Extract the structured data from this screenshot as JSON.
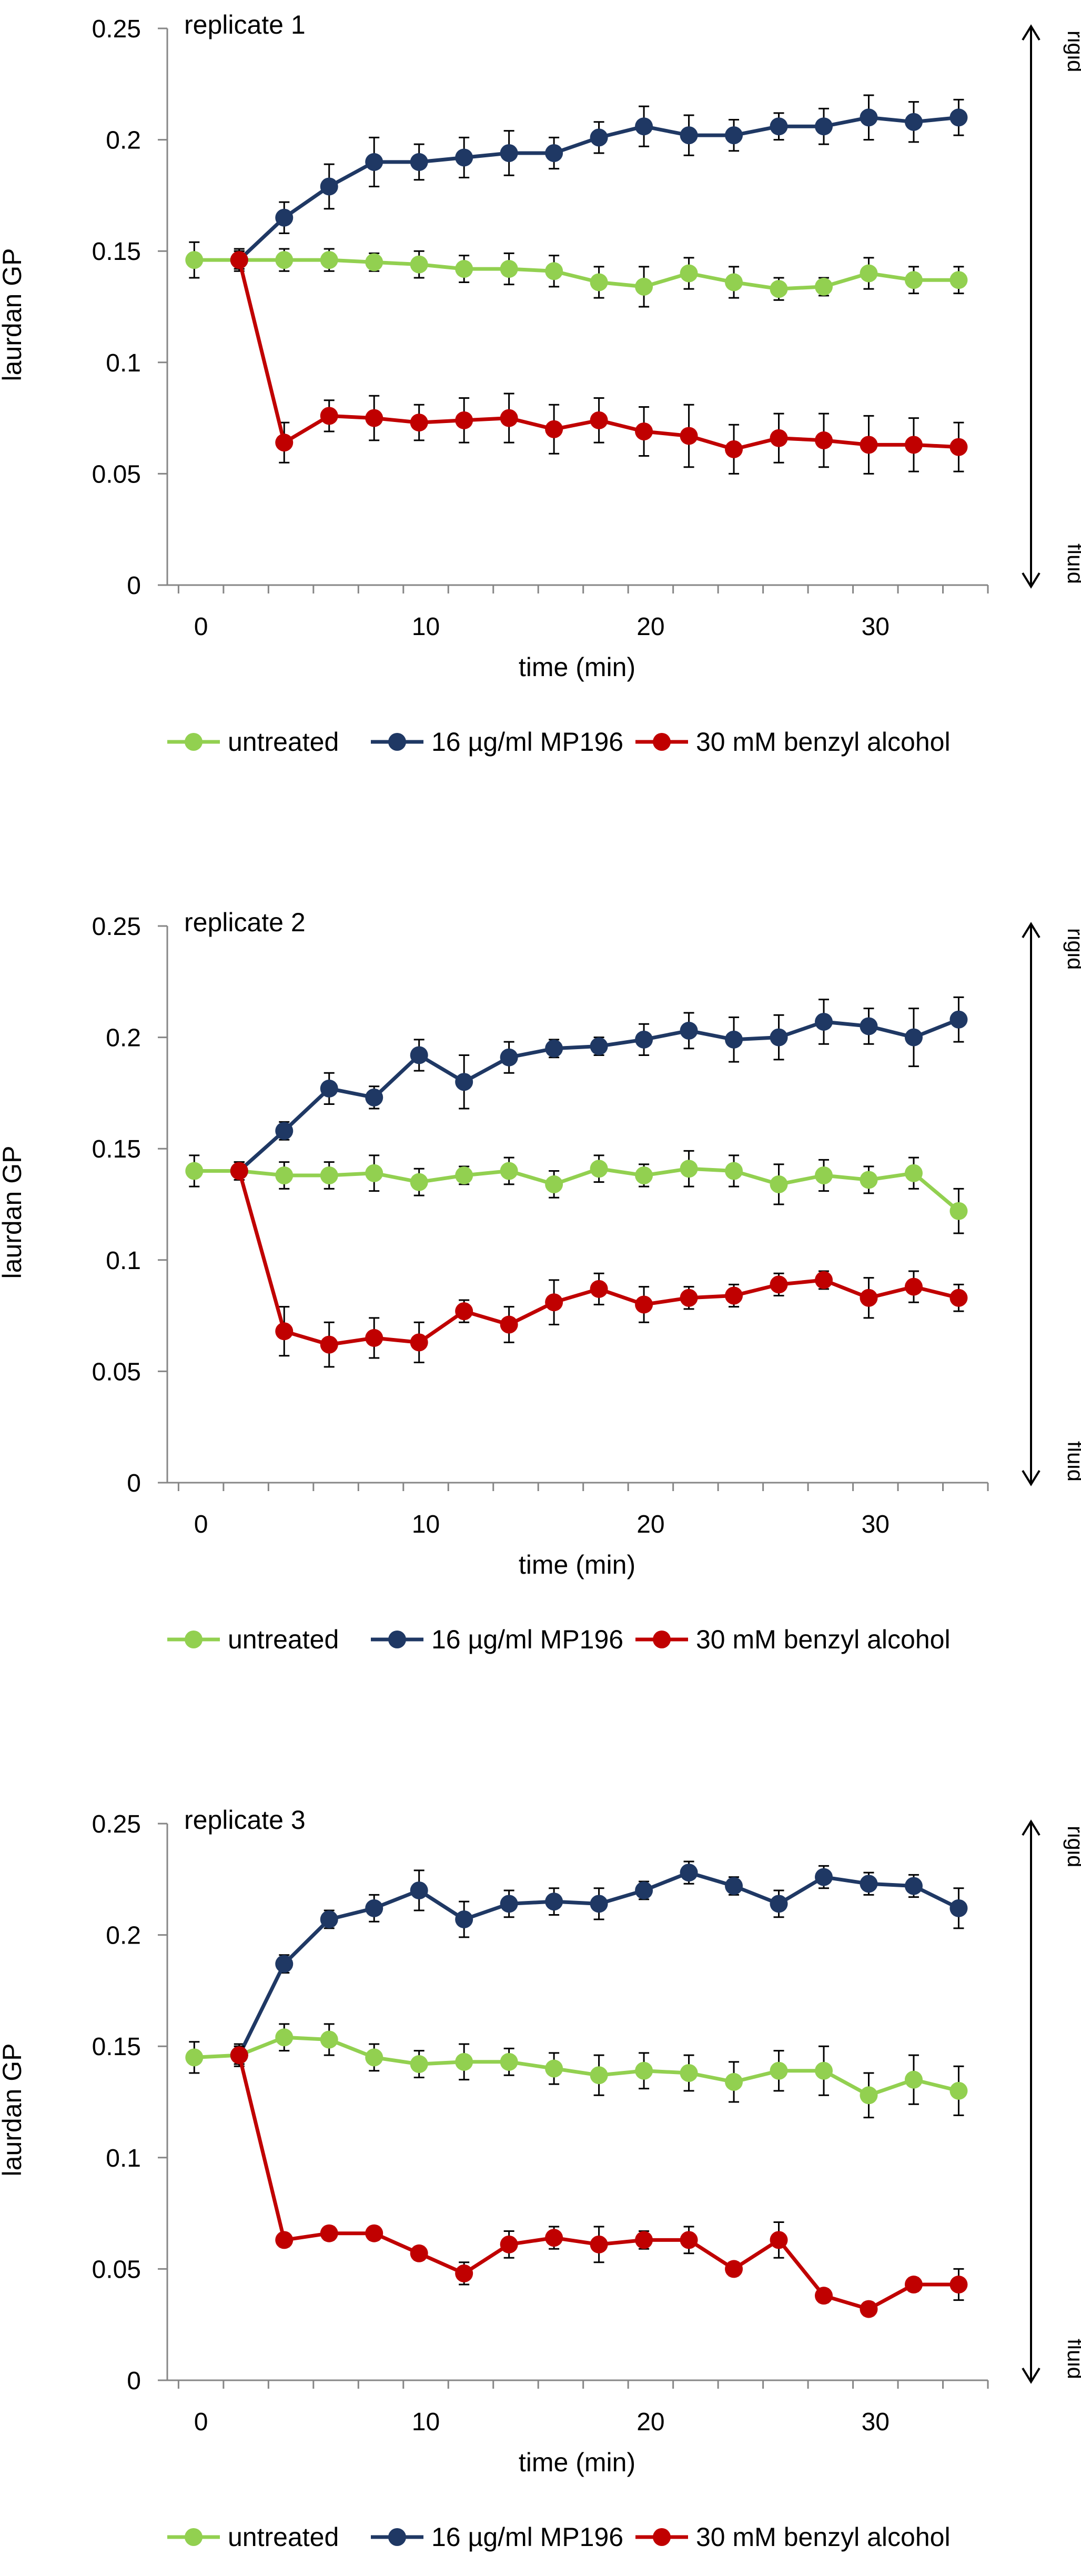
{
  "figure": {
    "colors": {
      "untreated": "#92d050",
      "mp196": "#1f3864",
      "benzyl": "#c00000",
      "axis": "#868686",
      "error": "#000000"
    }
  },
  "chart_data": [
    {
      "type": "line",
      "title": "replicate 1",
      "xlabel": "time (min)",
      "ylabel": "laurdan GP",
      "xlim": [
        -1.5,
        35
      ],
      "ylim": [
        0,
        0.25
      ],
      "xticks": [
        "0",
        "10",
        "20",
        "30"
      ],
      "yticks": [
        "0",
        "0.05",
        "0.1",
        "0.15",
        "0.2",
        "0.25"
      ],
      "grid": false,
      "legend": "bottom",
      "arrow_labels": {
        "top": "rigid",
        "bottom": "fluid"
      },
      "series": [
        {
          "name": "untreated",
          "x": [
            -0.3,
            1.7,
            3.7,
            5.7,
            7.7,
            9.7,
            11.7,
            13.7,
            15.7,
            17.7,
            19.7,
            21.7,
            23.7,
            25.7,
            27.7,
            29.7,
            31.7,
            33.7
          ],
          "y": [
            0.146,
            0.146,
            0.146,
            0.146,
            0.145,
            0.144,
            0.142,
            0.142,
            0.141,
            0.136,
            0.134,
            0.14,
            0.136,
            0.133,
            0.134,
            0.14,
            0.137,
            0.137
          ],
          "err": [
            0.008,
            0.005,
            0.005,
            0.005,
            0.004,
            0.006,
            0.006,
            0.007,
            0.007,
            0.007,
            0.009,
            0.007,
            0.007,
            0.005,
            0.004,
            0.007,
            0.006,
            0.006
          ]
        },
        {
          "name": "16 µg/ml MP196",
          "x": [
            1.7,
            3.7,
            5.7,
            7.7,
            9.7,
            11.7,
            13.7,
            15.7,
            17.7,
            19.7,
            21.7,
            23.7,
            25.7,
            27.7,
            29.7,
            31.7,
            33.7
          ],
          "y": [
            0.146,
            0.165,
            0.179,
            0.19,
            0.19,
            0.192,
            0.194,
            0.194,
            0.201,
            0.206,
            0.202,
            0.202,
            0.206,
            0.206,
            0.21,
            0.208,
            0.21
          ],
          "err": [
            0.004,
            0.007,
            0.01,
            0.011,
            0.008,
            0.009,
            0.01,
            0.007,
            0.007,
            0.009,
            0.009,
            0.007,
            0.006,
            0.008,
            0.01,
            0.009,
            0.008
          ]
        },
        {
          "name": "30 mM benzyl alcohol",
          "x": [
            1.7,
            3.7,
            5.7,
            7.7,
            9.7,
            11.7,
            13.7,
            15.7,
            17.7,
            19.7,
            21.7,
            23.7,
            25.7,
            27.7,
            29.7,
            31.7,
            33.7
          ],
          "y": [
            0.146,
            0.064,
            0.076,
            0.075,
            0.073,
            0.074,
            0.075,
            0.07,
            0.074,
            0.069,
            0.067,
            0.061,
            0.066,
            0.065,
            0.063,
            0.063,
            0.062
          ],
          "err": [
            0.004,
            0.009,
            0.007,
            0.01,
            0.008,
            0.01,
            0.011,
            0.011,
            0.01,
            0.011,
            0.014,
            0.011,
            0.011,
            0.012,
            0.013,
            0.012,
            0.011
          ]
        }
      ]
    },
    {
      "type": "line",
      "title": "replicate 2",
      "xlabel": "time (min)",
      "ylabel": "laurdan GP",
      "xlim": [
        -1.5,
        35
      ],
      "ylim": [
        0,
        0.25
      ],
      "xticks": [
        "0",
        "10",
        "20",
        "30"
      ],
      "yticks": [
        "0",
        "0.05",
        "0.1",
        "0.15",
        "0.2",
        "0.25"
      ],
      "grid": false,
      "legend": "bottom",
      "arrow_labels": {
        "top": "rigid",
        "bottom": "fluid"
      },
      "series": [
        {
          "name": "untreated",
          "x": [
            -0.3,
            1.7,
            3.7,
            5.7,
            7.7,
            9.7,
            11.7,
            13.7,
            15.7,
            17.7,
            19.7,
            21.7,
            23.7,
            25.7,
            27.7,
            29.7,
            31.7,
            33.7
          ],
          "y": [
            0.14,
            0.14,
            0.138,
            0.138,
            0.139,
            0.135,
            0.138,
            0.14,
            0.134,
            0.141,
            0.138,
            0.141,
            0.14,
            0.134,
            0.138,
            0.136,
            0.139,
            0.122
          ],
          "err": [
            0.007,
            0.004,
            0.006,
            0.006,
            0.008,
            0.006,
            0.004,
            0.006,
            0.006,
            0.006,
            0.005,
            0.008,
            0.007,
            0.009,
            0.007,
            0.006,
            0.007,
            0.01
          ]
        },
        {
          "name": "16 µg/ml MP196",
          "x": [
            1.7,
            3.7,
            5.7,
            7.7,
            9.7,
            11.7,
            13.7,
            15.7,
            17.7,
            19.7,
            21.7,
            23.7,
            25.7,
            27.7,
            29.7,
            31.7,
            33.7
          ],
          "y": [
            0.14,
            0.158,
            0.177,
            0.173,
            0.192,
            0.18,
            0.191,
            0.195,
            0.196,
            0.199,
            0.203,
            0.199,
            0.2,
            0.207,
            0.205,
            0.2,
            0.208
          ],
          "err": [
            0.004,
            0.004,
            0.007,
            0.005,
            0.007,
            0.012,
            0.007,
            0.004,
            0.004,
            0.007,
            0.008,
            0.01,
            0.01,
            0.01,
            0.008,
            0.013,
            0.01
          ]
        },
        {
          "name": "30 mM benzyl alcohol",
          "x": [
            1.7,
            3.7,
            5.7,
            7.7,
            9.7,
            11.7,
            13.7,
            15.7,
            17.7,
            19.7,
            21.7,
            23.7,
            25.7,
            27.7,
            29.7,
            31.7,
            33.7
          ],
          "y": [
            0.14,
            0.068,
            0.062,
            0.065,
            0.063,
            0.077,
            0.071,
            0.081,
            0.087,
            0.08,
            0.083,
            0.084,
            0.089,
            0.091,
            0.083,
            0.088,
            0.083
          ],
          "err": [
            0.004,
            0.011,
            0.01,
            0.009,
            0.009,
            0.005,
            0.008,
            0.01,
            0.007,
            0.008,
            0.005,
            0.005,
            0.005,
            0.004,
            0.009,
            0.007,
            0.006
          ]
        }
      ]
    },
    {
      "type": "line",
      "title": "replicate 3",
      "xlabel": "time (min)",
      "ylabel": "laurdan GP",
      "xlim": [
        -1.5,
        35
      ],
      "ylim": [
        0,
        0.25
      ],
      "xticks": [
        "0",
        "10",
        "20",
        "30"
      ],
      "yticks": [
        "0",
        "0.05",
        "0.1",
        "0.15",
        "0.2",
        "0.25"
      ],
      "grid": false,
      "legend": "bottom",
      "arrow_labels": {
        "top": "rigid",
        "bottom": "fluid"
      },
      "series": [
        {
          "name": "untreated",
          "x": [
            -0.3,
            1.7,
            3.7,
            5.7,
            7.7,
            9.7,
            11.7,
            13.7,
            15.7,
            17.7,
            19.7,
            21.7,
            23.7,
            25.7,
            27.7,
            29.7,
            31.7,
            33.7
          ],
          "y": [
            0.145,
            0.146,
            0.154,
            0.153,
            0.145,
            0.142,
            0.143,
            0.143,
            0.14,
            0.137,
            0.139,
            0.138,
            0.134,
            0.139,
            0.139,
            0.128,
            0.135,
            0.13
          ],
          "err": [
            0.007,
            0.005,
            0.006,
            0.007,
            0.006,
            0.006,
            0.008,
            0.006,
            0.007,
            0.009,
            0.008,
            0.008,
            0.009,
            0.009,
            0.011,
            0.01,
            0.011,
            0.011
          ]
        },
        {
          "name": "16 µg/ml MP196",
          "x": [
            1.7,
            3.7,
            5.7,
            7.7,
            9.7,
            11.7,
            13.7,
            15.7,
            17.7,
            19.7,
            21.7,
            23.7,
            25.7,
            27.7,
            29.7,
            31.7,
            33.7
          ],
          "y": [
            0.146,
            0.187,
            0.207,
            0.212,
            0.22,
            0.207,
            0.214,
            0.215,
            0.214,
            0.22,
            0.228,
            0.222,
            0.214,
            0.226,
            0.223,
            0.222,
            0.212
          ],
          "err": [
            0.004,
            0.004,
            0.004,
            0.006,
            0.009,
            0.008,
            0.006,
            0.006,
            0.007,
            0.004,
            0.005,
            0.004,
            0.006,
            0.005,
            0.005,
            0.005,
            0.009
          ]
        },
        {
          "name": "30 mM benzyl alcohol",
          "x": [
            1.7,
            3.7,
            5.7,
            7.7,
            9.7,
            11.7,
            13.7,
            15.7,
            17.7,
            19.7,
            21.7,
            23.7,
            25.7,
            27.7,
            29.7,
            31.7,
            33.7
          ],
          "y": [
            0.146,
            0.063,
            0.066,
            0.066,
            0.057,
            0.048,
            0.061,
            0.064,
            0.061,
            0.063,
            0.063,
            0.05,
            0.063,
            0.038,
            0.032,
            0.043,
            0.043
          ],
          "err": [
            0.004,
            0.003,
            0.003,
            0.003,
            0.003,
            0.005,
            0.006,
            0.005,
            0.008,
            0.004,
            0.006,
            0.003,
            0.008,
            0.003,
            0.003,
            0.003,
            0.007
          ]
        }
      ]
    }
  ]
}
